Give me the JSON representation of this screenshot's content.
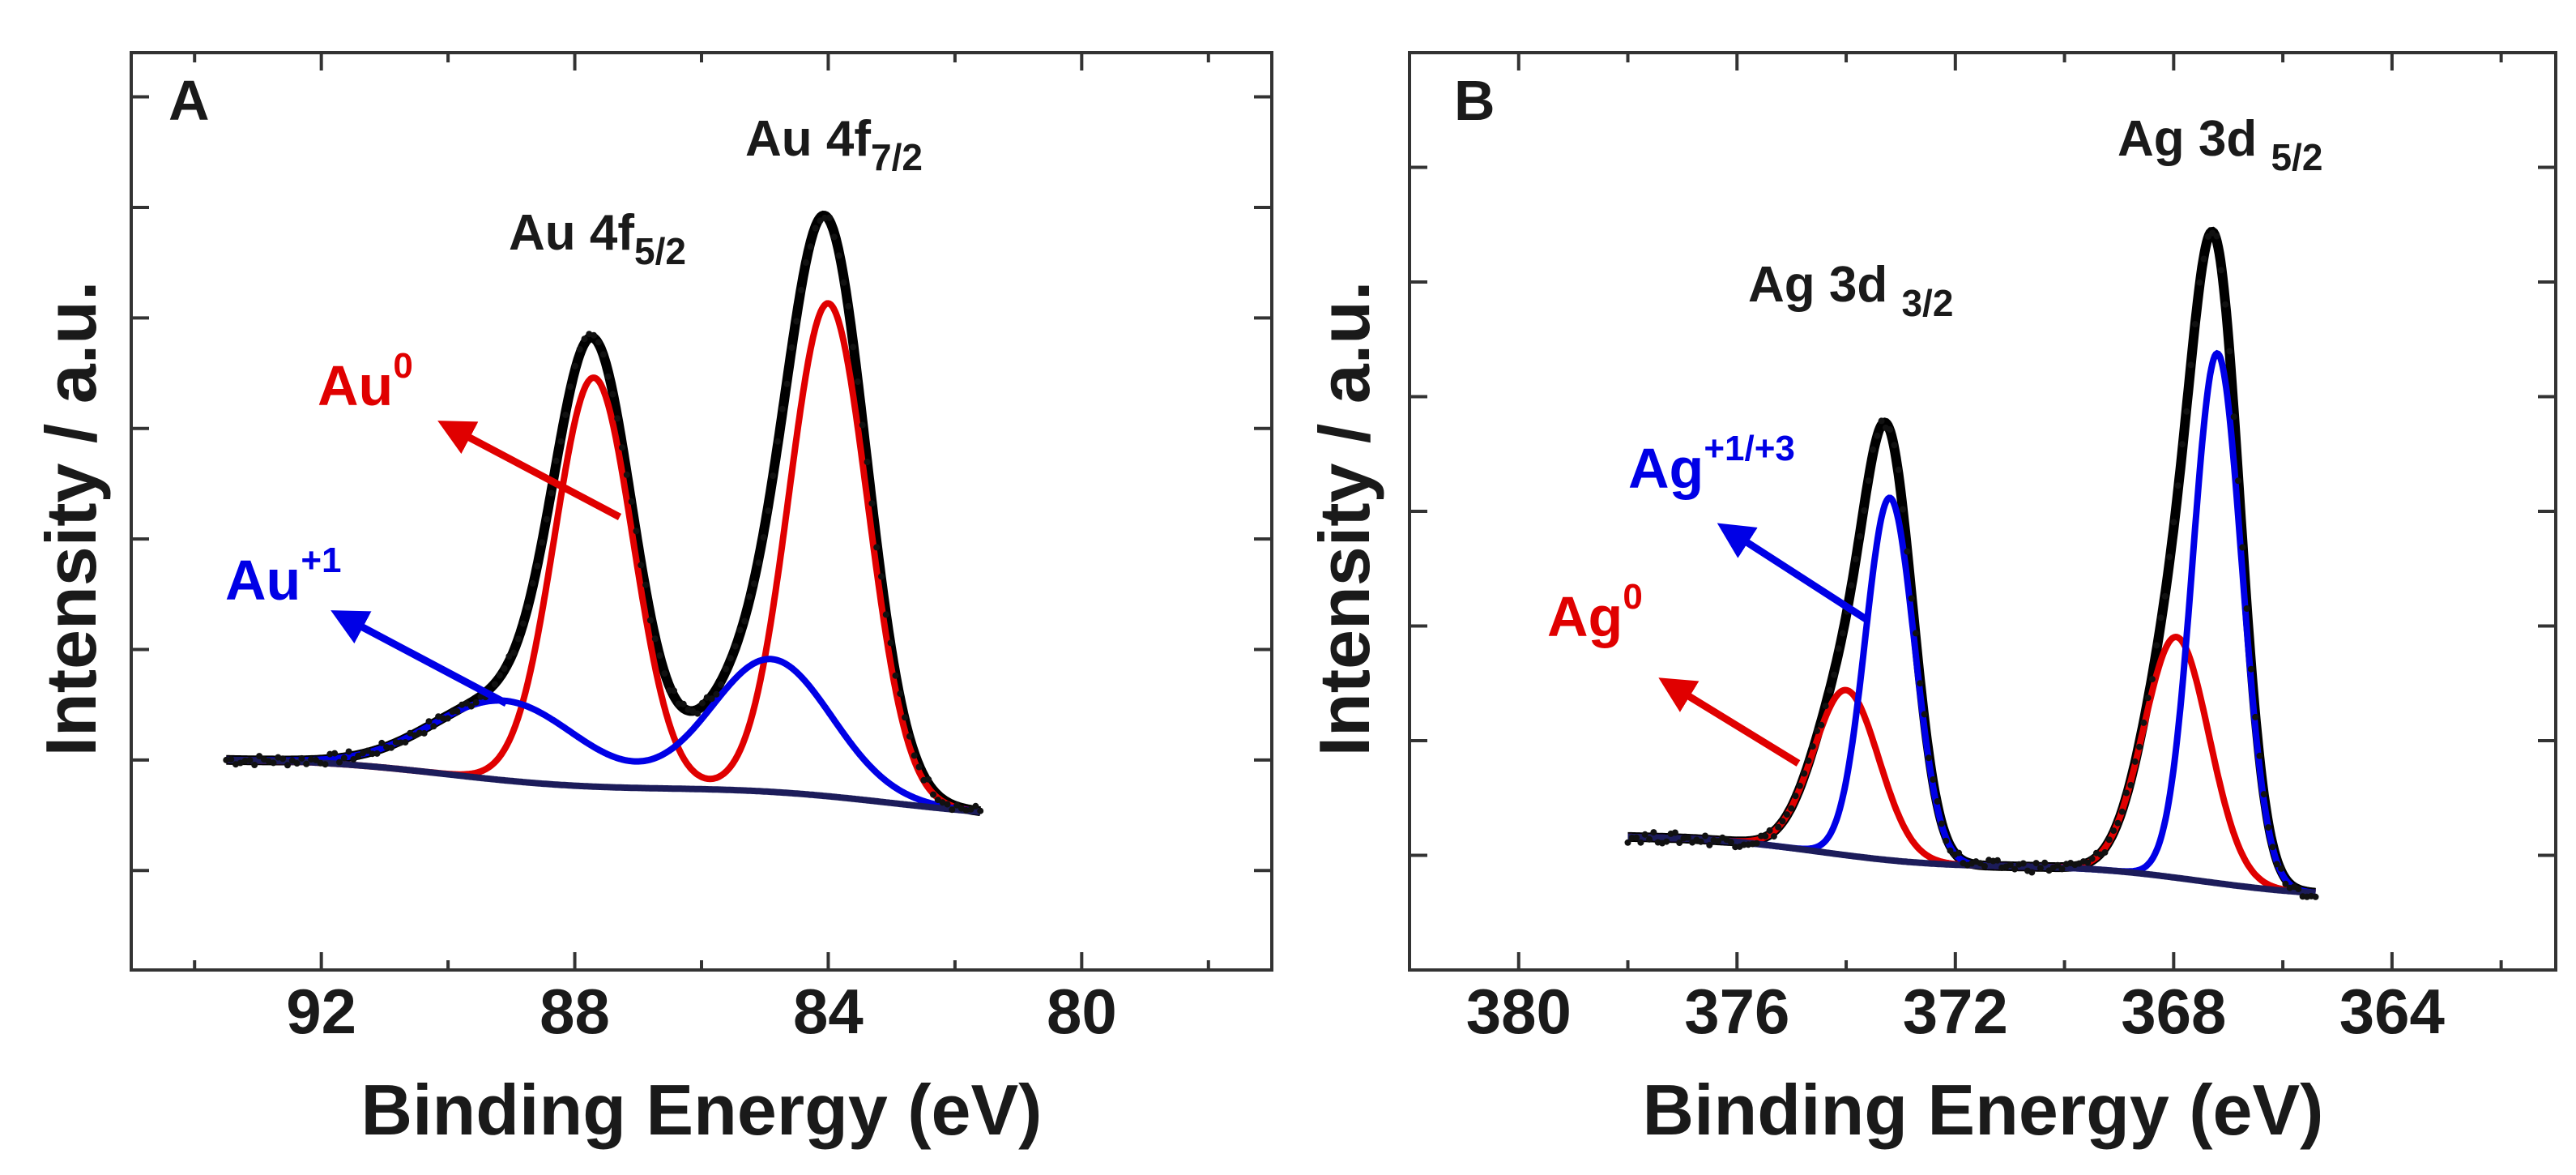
{
  "chart_data": [
    {
      "id": "A",
      "type": "line",
      "panel_label": "A",
      "xlabel": "Binding Energy (eV)",
      "ylabel": "Intensity / a.u.",
      "xlim": [
        95,
        77
      ],
      "ylim": [
        -0.45,
        3.7
      ],
      "x_ticks": [
        92,
        88,
        84,
        80
      ],
      "x_tick_labels": [
        "92",
        "88",
        "84",
        "80"
      ],
      "y_ticks": [
        0,
        0.5,
        1,
        1.5,
        2,
        2.5,
        3,
        3.5
      ],
      "x_range": [
        93.5,
        81.6
      ],
      "baseline": {
        "start": 0.5,
        "end": 0.28
      },
      "series": [
        {
          "name": "Au0",
          "color": "#e00000",
          "peaks": [
            {
              "center": 87.7,
              "height": 1.85,
              "width": 0.62
            },
            {
              "center": 84.0,
              "height": 2.23,
              "width": 0.62
            }
          ]
        },
        {
          "name": "Au+1",
          "color": "#0000e6",
          "peaks": [
            {
              "center": 89.1,
              "height": 0.36,
              "width": 1.15
            },
            {
              "center": 84.9,
              "height": 0.6,
              "width": 0.95
            }
          ]
        },
        {
          "name": "Envelope",
          "color": "#000000",
          "role": "envelope"
        },
        {
          "name": "Background",
          "color": "#1c1c5a",
          "role": "baseline"
        }
      ],
      "peak_labels": [
        {
          "text": "Au 4f",
          "sub": "5/2"
        },
        {
          "text": "Au 4f",
          "sub": "7/2"
        }
      ],
      "annotations": [
        {
          "text": "Au",
          "sup": "0",
          "color": "#e00000"
        },
        {
          "text": "Au",
          "sup": "+1",
          "color": "#0000e6"
        }
      ]
    },
    {
      "id": "B",
      "type": "line",
      "panel_label": "B",
      "xlabel": "Binding Energy (eV)",
      "ylabel": "Intensity / a.u.",
      "xlim": [
        382,
        361
      ],
      "ylim": [
        -0.5,
        3.5
      ],
      "x_ticks": [
        380,
        376,
        372,
        368,
        364
      ],
      "x_tick_labels": [
        "380",
        "376",
        "372",
        "368",
        "364"
      ],
      "y_ticks": [
        0,
        0.5,
        1,
        1.5,
        2,
        2.5,
        3
      ],
      "x_range": [
        378.0,
        365.4
      ],
      "baseline": {
        "start": 0.08,
        "end": -0.15
      },
      "series": [
        {
          "name": "Ag0",
          "color": "#e00000",
          "peaks": [
            {
              "center": 374.0,
              "height": 0.72,
              "width": 0.6
            },
            {
              "center": 367.95,
              "height": 1.05,
              "width": 0.6
            }
          ]
        },
        {
          "name": "Ag+1/+3",
          "color": "#0000e6",
          "peaks": [
            {
              "center": 373.2,
              "height": 1.58,
              "width": 0.45
            },
            {
              "center": 367.2,
              "height": 2.31,
              "width": 0.45
            }
          ]
        },
        {
          "name": "Envelope",
          "color": "#000000",
          "role": "envelope"
        },
        {
          "name": "Background",
          "color": "#1c1c5a",
          "role": "baseline"
        }
      ],
      "peak_labels": [
        {
          "text": "Ag 3d ",
          "sub": "3/2"
        },
        {
          "text": "Ag 3d ",
          "sub": "5/2"
        }
      ],
      "annotations": [
        {
          "text": "Ag",
          "sup": "+1/+3",
          "color": "#0000e6"
        },
        {
          "text": "Ag",
          "sup": "0",
          "color": "#e00000"
        }
      ]
    }
  ]
}
